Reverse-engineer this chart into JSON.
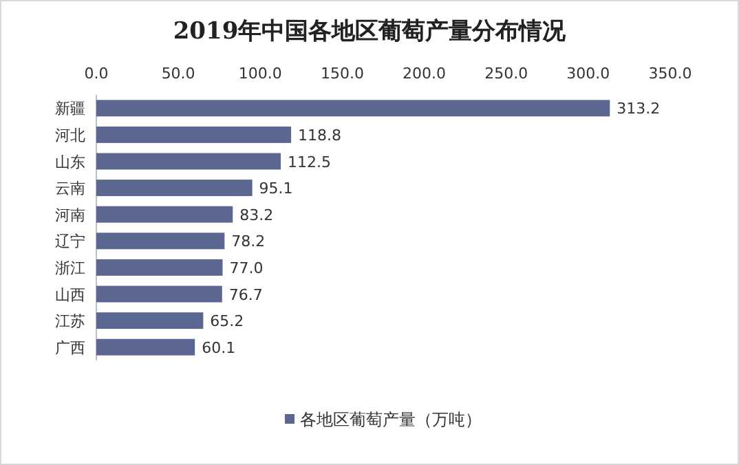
{
  "chart_data": {
    "type": "bar",
    "title": "2019年中国各地区葡萄产量分布情况",
    "orientation": "horizontal",
    "categories": [
      "新疆",
      "河北",
      "山东",
      "云南",
      "河南",
      "辽宁",
      "浙江",
      "山西",
      "江苏",
      "广西"
    ],
    "series": [
      {
        "name": "各地区葡萄产量（万吨）",
        "color": "#5b6790",
        "values": [
          313.2,
          118.8,
          112.5,
          95.1,
          83.2,
          78.2,
          77.0,
          76.7,
          65.2,
          60.1
        ],
        "value_labels": [
          "313.2",
          "118.8",
          "112.5",
          "95.1",
          "83.2",
          "78.2",
          "77.0",
          "76.7",
          "65.2",
          "60.1"
        ]
      }
    ],
    "xlim": [
      0,
      350
    ],
    "xticks": [
      {
        "value": 0,
        "label": "0.0"
      },
      {
        "value": 50,
        "label": "50.0"
      },
      {
        "value": 100,
        "label": "100.0"
      },
      {
        "value": 150,
        "label": "150.0"
      },
      {
        "value": 200,
        "label": "200.0"
      },
      {
        "value": 250,
        "label": "250.0"
      },
      {
        "value": 300,
        "label": "300.0"
      },
      {
        "value": 350,
        "label": "350.0"
      }
    ],
    "legend": "bottom"
  }
}
